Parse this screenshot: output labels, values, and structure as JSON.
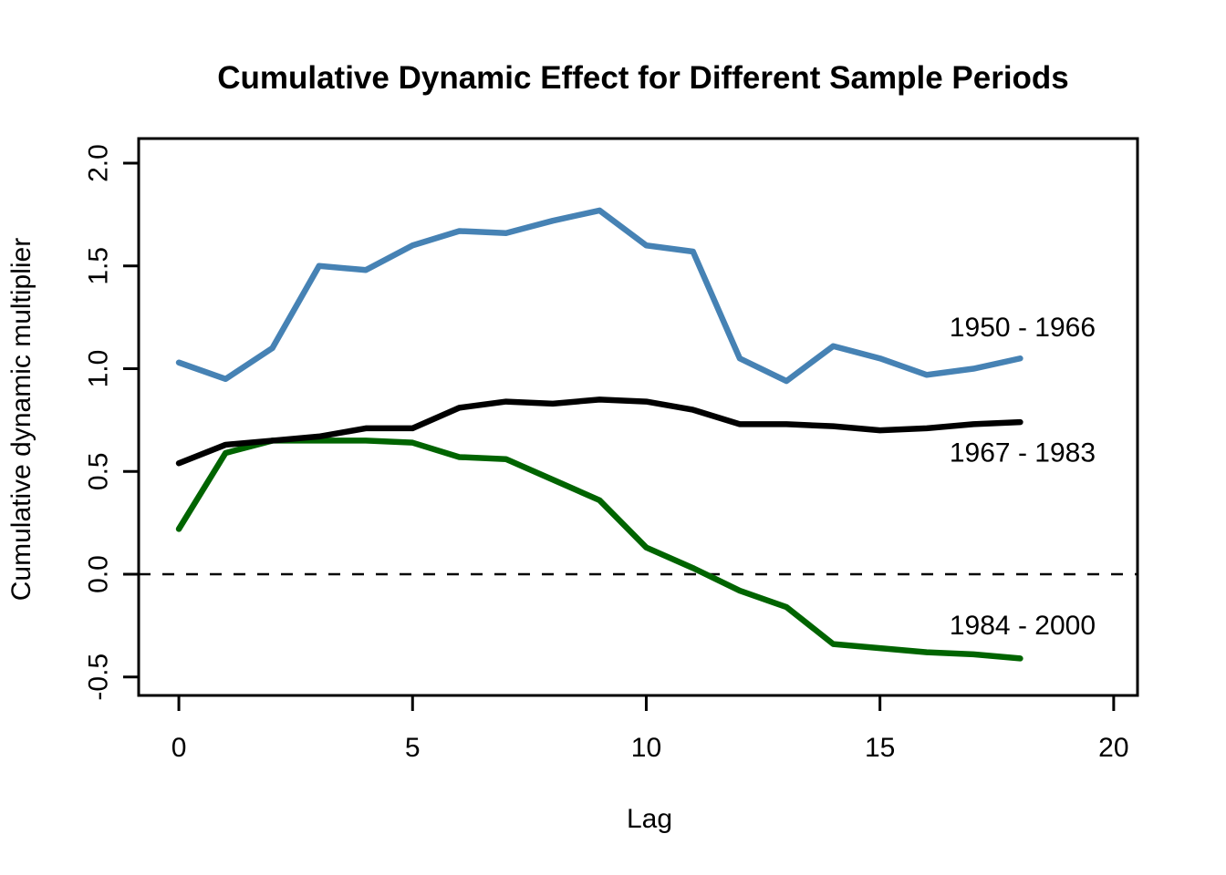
{
  "chart_data": {
    "type": "line",
    "title": "Cumulative Dynamic Effect for Different Sample Periods",
    "xlabel": "Lag",
    "ylabel": "Cumulative dynamic multiplier",
    "x": [
      0,
      1,
      2,
      3,
      4,
      5,
      6,
      7,
      8,
      9,
      10,
      11,
      12,
      13,
      14,
      15,
      16,
      17,
      18
    ],
    "series": [
      {
        "name": "1950 - 1966",
        "color": "#4682B4",
        "values": [
          1.03,
          0.95,
          1.1,
          1.5,
          1.48,
          1.6,
          1.67,
          1.66,
          1.72,
          1.77,
          1.6,
          1.57,
          1.05,
          0.94,
          1.11,
          1.05,
          0.97,
          1.0,
          1.05
        ]
      },
      {
        "name": "1967 - 1983",
        "color": "#000000",
        "values": [
          0.54,
          0.63,
          0.65,
          0.67,
          0.71,
          0.71,
          0.81,
          0.84,
          0.83,
          0.85,
          0.84,
          0.8,
          0.73,
          0.73,
          0.72,
          0.7,
          0.71,
          0.73,
          0.74
        ]
      },
      {
        "name": "1984 - 2000",
        "color": "#006400",
        "values": [
          0.22,
          0.59,
          0.65,
          0.65,
          0.65,
          0.64,
          0.57,
          0.56,
          0.46,
          0.36,
          0.13,
          0.03,
          -0.08,
          -0.16,
          -0.34,
          -0.36,
          -0.38,
          -0.39,
          -0.41
        ]
      }
    ],
    "x_ticks": [
      0,
      5,
      10,
      15,
      20
    ],
    "x_tick_labels": [
      "0",
      "5",
      "10",
      "15",
      "20"
    ],
    "y_ticks": [
      -0.5,
      0.0,
      0.5,
      1.0,
      1.5,
      2.0
    ],
    "y_tick_labels": [
      "-0.5",
      "0.0",
      "0.5",
      "1.0",
      "1.5",
      "2.0"
    ],
    "xlim": [
      -0.86,
      20.51
    ],
    "ylim": [
      -0.59,
      2.12
    ],
    "grid": false,
    "legend_position": "inline-annotations",
    "reference_line": {
      "y": 0.0,
      "style": "dashed",
      "color": "#000000"
    },
    "annotations": [
      {
        "text": "1950 - 1966",
        "x": 18.05,
        "y": 1.2
      },
      {
        "text": "1967 - 1983",
        "x": 18.05,
        "y": 0.59
      },
      {
        "text": "1984 - 2000",
        "x": 18.05,
        "y": -0.25
      }
    ]
  }
}
